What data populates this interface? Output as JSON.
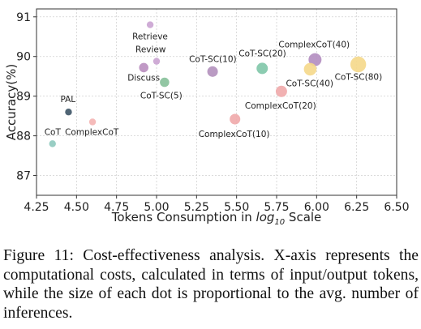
{
  "chart_data": {
    "type": "scatter",
    "xlabel_prefix": "Tokens Consumption in ",
    "xlabel_math": "log",
    "xlabel_sub": "10",
    "xlabel_suffix": " Scale",
    "ylabel": "Accuracy(%)",
    "xlim": [
      4.25,
      6.5
    ],
    "ylim": [
      86.5,
      91.2
    ],
    "xticks": [
      "4.25",
      "4.50",
      "4.75",
      "5.00",
      "5.25",
      "5.50",
      "5.75",
      "6.00",
      "6.25",
      "6.50"
    ],
    "yticks": [
      "87",
      "88",
      "89",
      "90",
      "91"
    ],
    "grid": true,
    "points": [
      {
        "label": "CoT",
        "x": 4.35,
        "y": 87.8,
        "color": "#8ec9be",
        "size": 1
      },
      {
        "label": "PAL",
        "x": 4.45,
        "y": 88.6,
        "color": "#3d5466",
        "size": 1
      },
      {
        "label": "ComplexCoT",
        "x": 4.6,
        "y": 88.35,
        "color": "#f4b4b2",
        "size": 1
      },
      {
        "label": "Retrieve",
        "x": 4.96,
        "y": 90.8,
        "color": "#caa3d2",
        "size": 1
      },
      {
        "label": "Review",
        "x": 5.0,
        "y": 89.88,
        "color": "#caa3d2",
        "size": 1
      },
      {
        "label": "Discuss",
        "x": 4.92,
        "y": 89.72,
        "color": "#b98ebf",
        "size": 2
      },
      {
        "label": "CoT-SC(5)",
        "x": 5.05,
        "y": 89.35,
        "color": "#86c099",
        "size": 2
      },
      {
        "label": "CoT-SC(10)",
        "x": 5.35,
        "y": 89.62,
        "color": "#b390bd",
        "size": 2.6
      },
      {
        "label": "CoT-SC(20)",
        "x": 5.66,
        "y": 89.7,
        "color": "#7fc7a9",
        "size": 3
      },
      {
        "label": "ComplexCoT(10)",
        "x": 5.49,
        "y": 88.42,
        "color": "#f0a8aa",
        "size": 2.6
      },
      {
        "label": "ComplexCoT(20)",
        "x": 5.78,
        "y": 89.12,
        "color": "#f0a8aa",
        "size": 3
      },
      {
        "label": "ComplexCoT(40)",
        "x": 5.99,
        "y": 89.92,
        "color": "#b38dc0",
        "size": 4
      },
      {
        "label": "CoT-SC(40)",
        "x": 5.96,
        "y": 89.68,
        "color": "#f5d88a",
        "size": 3.8
      },
      {
        "label": "CoT-SC(80)",
        "x": 6.26,
        "y": 89.8,
        "color": "#f5d88a",
        "size": 6
      }
    ]
  },
  "caption": "Figure 11: Cost-effectiveness analysis. X-axis represents the computational costs, calculated in terms of input/output tokens, while the size of each dot is proportional to the avg. number of inferences."
}
